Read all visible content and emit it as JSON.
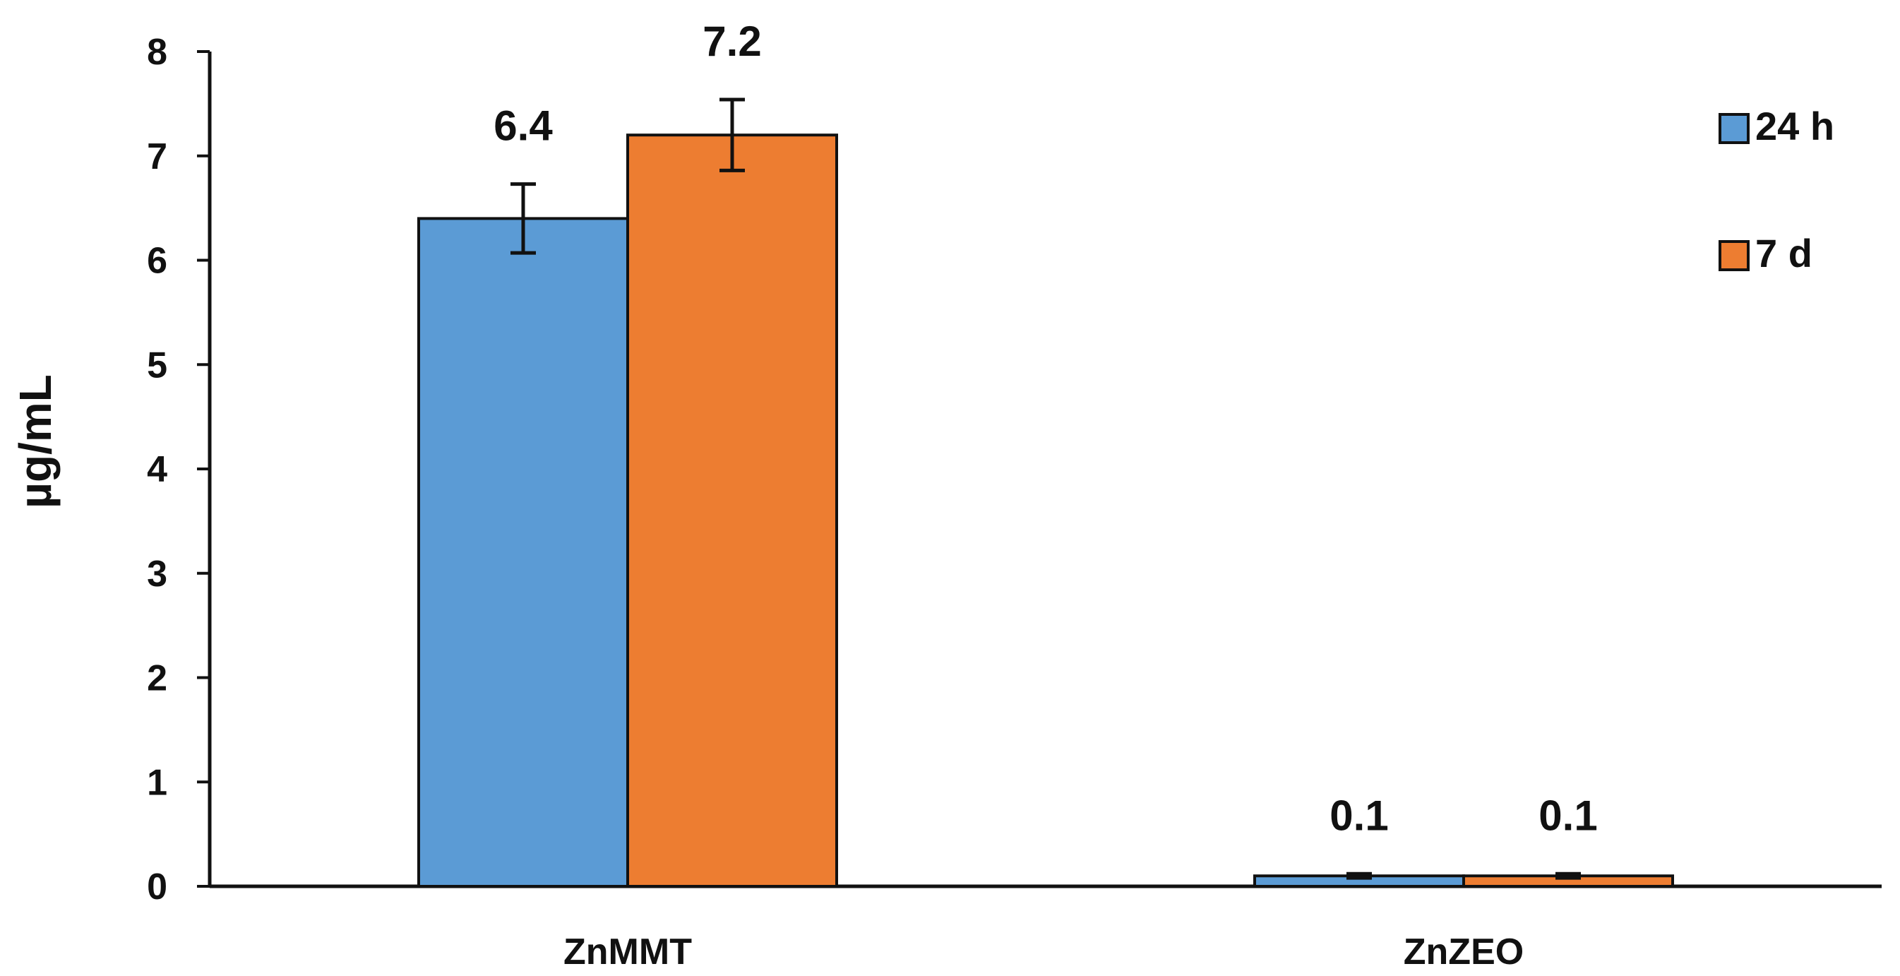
{
  "chart_data": {
    "type": "bar",
    "title": "",
    "xlabel": "",
    "ylabel": "µg/mL",
    "ylim": [
      0,
      8
    ],
    "yticks": [
      0,
      1,
      2,
      3,
      4,
      5,
      6,
      7,
      8
    ],
    "categories": [
      "ZnMMT",
      "ZnZEO"
    ],
    "series": [
      {
        "name": "24 h",
        "color": "#5B9BD5",
        "values": [
          6.4,
          0.1
        ],
        "errors": [
          0.33,
          0.02
        ],
        "labels": [
          "6.4",
          "0.1"
        ]
      },
      {
        "name": "7 d",
        "color": "#ED7D31",
        "values": [
          7.2,
          0.1
        ],
        "errors": [
          0.34,
          0.02
        ],
        "labels": [
          "7.2",
          "0.1"
        ]
      }
    ],
    "grid": false,
    "legend_position": "right"
  }
}
